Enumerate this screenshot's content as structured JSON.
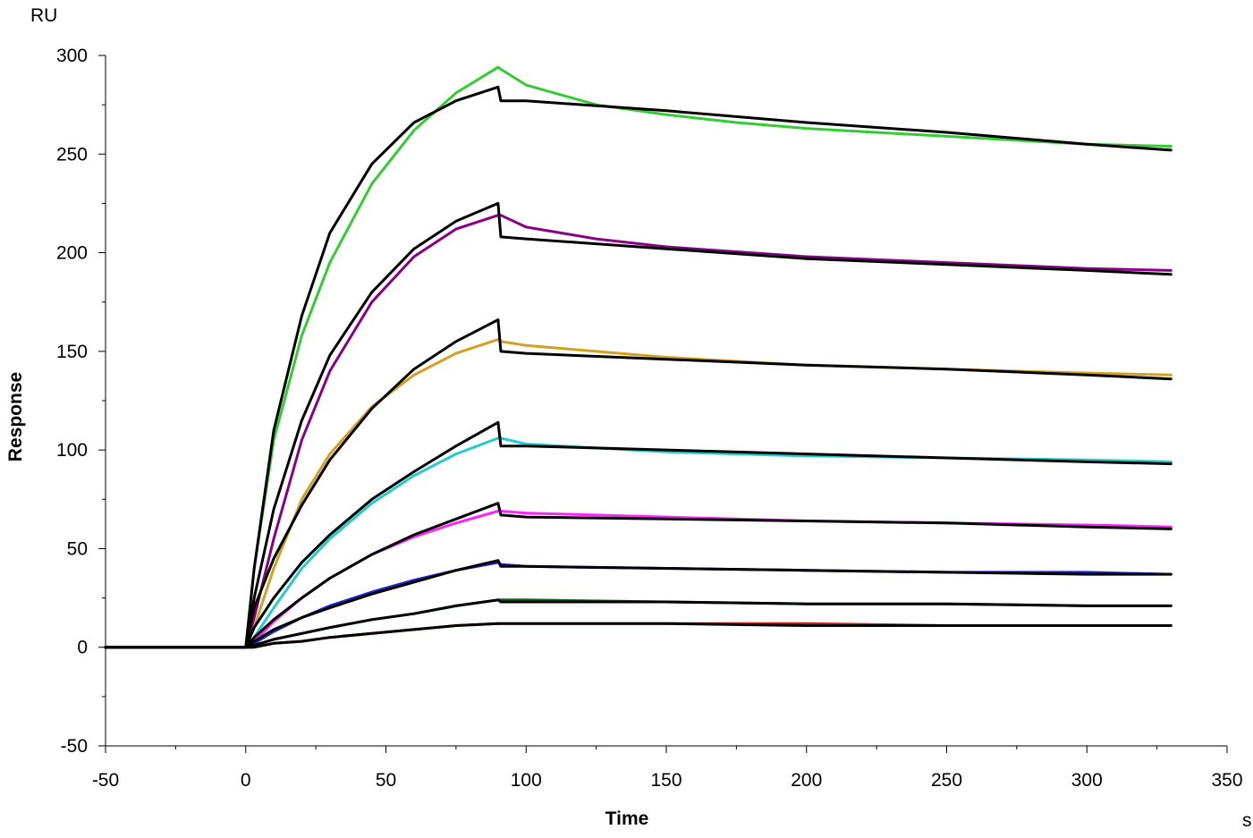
{
  "chart_data": {
    "type": "line",
    "title": "",
    "xlabel": "Time",
    "ylabel": "Response",
    "x_unit": "s",
    "y_unit": "RU",
    "xlim": [
      -50,
      350
    ],
    "ylim": [
      -50,
      300
    ],
    "x_ticks": [
      -50,
      0,
      50,
      100,
      150,
      200,
      250,
      300,
      350
    ],
    "y_ticks": [
      -50,
      0,
      50,
      100,
      150,
      200,
      250,
      300
    ],
    "x_minor_step": 25,
    "y_minor_step": 25,
    "grid": false,
    "legend": "none",
    "series": [
      {
        "color": "#33cc33",
        "x": [
          -50,
          0,
          3,
          10,
          20,
          30,
          45,
          60,
          75,
          90,
          91,
          100,
          125,
          150,
          175,
          200,
          250,
          300,
          330
        ],
        "y": [
          0,
          0,
          40,
          105,
          158,
          195,
          235,
          262,
          281,
          294,
          293,
          285,
          275,
          270,
          266,
          263,
          259,
          255,
          254
        ]
      },
      {
        "color": "#000000",
        "x": [
          -50,
          0,
          3,
          10,
          20,
          30,
          45,
          60,
          75,
          90,
          91,
          100,
          150,
          200,
          250,
          300,
          330
        ],
        "y": [
          0,
          0,
          40,
          110,
          168,
          210,
          245,
          266,
          277,
          284,
          277,
          277,
          272,
          266,
          261,
          255,
          252
        ]
      },
      {
        "color": "#880088",
        "x": [
          -50,
          0,
          3,
          10,
          20,
          30,
          45,
          60,
          75,
          90,
          91,
          100,
          125,
          150,
          200,
          250,
          300,
          330
        ],
        "y": [
          0,
          0,
          15,
          55,
          105,
          140,
          175,
          198,
          212,
          219,
          219,
          213,
          207,
          203,
          198,
          195,
          192,
          191
        ]
      },
      {
        "color": "#000000",
        "x": [
          -50,
          0,
          3,
          10,
          20,
          30,
          45,
          60,
          75,
          90,
          91,
          100,
          150,
          200,
          250,
          300,
          330
        ],
        "y": [
          0,
          0,
          25,
          70,
          115,
          148,
          180,
          202,
          216,
          225,
          208,
          207,
          202,
          197,
          194,
          191,
          189
        ]
      },
      {
        "color": "#d4a020",
        "x": [
          -50,
          0,
          3,
          10,
          20,
          30,
          45,
          60,
          75,
          90,
          91,
          100,
          125,
          150,
          200,
          250,
          300,
          330
        ],
        "y": [
          0,
          0,
          10,
          40,
          75,
          98,
          122,
          138,
          149,
          156,
          155,
          153,
          150,
          147,
          143,
          141,
          139,
          138
        ]
      },
      {
        "color": "#000000",
        "x": [
          -50,
          0,
          3,
          10,
          20,
          30,
          45,
          60,
          75,
          90,
          91,
          100,
          150,
          200,
          250,
          300,
          330
        ],
        "y": [
          0,
          0,
          20,
          45,
          72,
          95,
          121,
          141,
          155,
          166,
          150,
          149,
          146,
          143,
          141,
          138,
          136
        ]
      },
      {
        "color": "#22cccc",
        "x": [
          -50,
          0,
          3,
          10,
          20,
          30,
          45,
          60,
          75,
          90,
          91,
          100,
          125,
          150,
          200,
          250,
          300,
          330
        ],
        "y": [
          0,
          0,
          5,
          20,
          40,
          55,
          73,
          87,
          98,
          106,
          106,
          103,
          101,
          99,
          97,
          96,
          95,
          94
        ]
      },
      {
        "color": "#000000",
        "x": [
          -50,
          0,
          3,
          10,
          20,
          30,
          45,
          60,
          75,
          90,
          91,
          100,
          150,
          200,
          250,
          300,
          330
        ],
        "y": [
          0,
          0,
          10,
          25,
          43,
          57,
          75,
          89,
          102,
          114,
          102,
          102,
          100,
          98,
          96,
          94,
          93
        ]
      },
      {
        "color": "#ff22ff",
        "x": [
          -50,
          0,
          3,
          10,
          20,
          30,
          45,
          60,
          75,
          90,
          91,
          100,
          150,
          200,
          250,
          300,
          330
        ],
        "y": [
          0,
          0,
          3,
          13,
          25,
          35,
          47,
          56,
          63,
          69,
          69,
          68,
          66,
          64,
          63,
          62,
          61
        ]
      },
      {
        "color": "#000000",
        "x": [
          -50,
          0,
          3,
          10,
          20,
          30,
          45,
          60,
          75,
          90,
          91,
          100,
          150,
          200,
          250,
          300,
          330
        ],
        "y": [
          0,
          0,
          5,
          14,
          25,
          35,
          47,
          57,
          65,
          73,
          67,
          66,
          65,
          64,
          63,
          61,
          60
        ]
      },
      {
        "color": "#2222cc",
        "x": [
          -50,
          0,
          3,
          10,
          20,
          30,
          45,
          60,
          75,
          90,
          91,
          100,
          150,
          200,
          250,
          300,
          330
        ],
        "y": [
          0,
          0,
          2,
          8,
          15,
          21,
          28,
          34,
          39,
          43,
          42,
          41,
          40,
          39,
          38,
          38,
          37
        ]
      },
      {
        "color": "#000000",
        "x": [
          -50,
          0,
          3,
          10,
          20,
          30,
          45,
          60,
          75,
          90,
          91,
          100,
          150,
          200,
          250,
          300,
          330
        ],
        "y": [
          0,
          0,
          3,
          9,
          15,
          20,
          27,
          33,
          39,
          44,
          41,
          41,
          40,
          39,
          38,
          37,
          37
        ]
      },
      {
        "color": "#116611",
        "x": [
          -50,
          0,
          3,
          10,
          20,
          30,
          45,
          60,
          75,
          90,
          91,
          100,
          150,
          200,
          250,
          300,
          330
        ],
        "y": [
          0,
          0,
          1,
          4,
          7,
          10,
          14,
          17,
          21,
          24,
          24,
          24,
          23,
          22,
          22,
          21,
          21
        ]
      },
      {
        "color": "#000000",
        "x": [
          -50,
          0,
          3,
          10,
          20,
          30,
          45,
          60,
          75,
          90,
          91,
          100,
          150,
          200,
          250,
          300,
          330
        ],
        "y": [
          0,
          0,
          1,
          4,
          7,
          10,
          14,
          17,
          21,
          24,
          23,
          23,
          23,
          22,
          22,
          21,
          21
        ]
      },
      {
        "color": "#cc2222",
        "x": [
          -50,
          0,
          3,
          10,
          20,
          30,
          45,
          60,
          75,
          90,
          91,
          100,
          150,
          200,
          250,
          300,
          330
        ],
        "y": [
          0,
          0,
          0,
          2,
          3,
          5,
          7,
          9,
          11,
          12,
          12,
          12,
          12,
          12,
          11,
          11,
          11
        ]
      },
      {
        "color": "#000000",
        "x": [
          -50,
          0,
          3,
          10,
          20,
          30,
          45,
          60,
          75,
          90,
          91,
          100,
          150,
          200,
          250,
          300,
          330
        ],
        "y": [
          0,
          0,
          0,
          2,
          3,
          5,
          7,
          9,
          11,
          12,
          12,
          12,
          12,
          11,
          11,
          11,
          11
        ]
      }
    ]
  }
}
